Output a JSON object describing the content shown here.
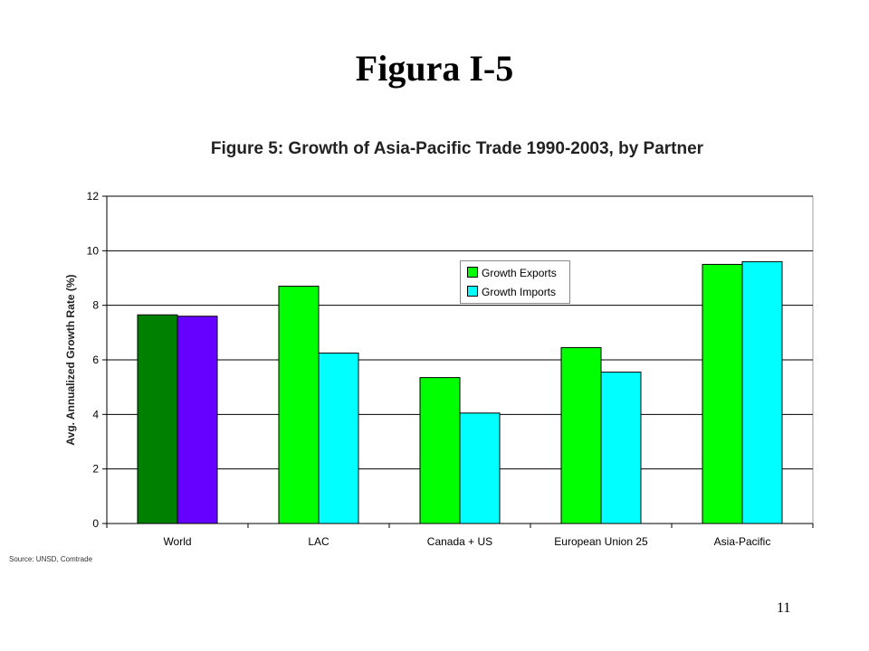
{
  "slide": {
    "title": "Figura I-5",
    "page_number": "11"
  },
  "source_note": "Source:  UNSD, Comtrade",
  "chart_data": {
    "type": "bar",
    "title": "Figure 5: Growth of Asia-Pacific Trade 1990-2003, by Partner",
    "xlabel": "",
    "ylabel": "Avg. Annualized Growth Rate (%)",
    "ylim": [
      0,
      12
    ],
    "yticks": [
      0,
      2,
      4,
      6,
      8,
      10,
      12
    ],
    "grid": true,
    "legend_position": "upper-center",
    "categories": [
      "World",
      "LAC",
      "Canada + US",
      "European Union 25",
      "Asia-Pacific"
    ],
    "series": [
      {
        "name": "Growth Exports",
        "color": "#00ff00",
        "values": [
          7.65,
          8.7,
          5.35,
          6.45,
          9.5
        ],
        "point_colors": [
          "#008000",
          "#00ff00",
          "#00ff00",
          "#00ff00",
          "#00ff00"
        ]
      },
      {
        "name": "Growth Imports",
        "color": "#00ffff",
        "values": [
          7.6,
          6.25,
          4.05,
          5.55,
          9.6
        ],
        "point_colors": [
          "#6600ff",
          "#00ffff",
          "#00ffff",
          "#00ffff",
          "#00ffff"
        ]
      }
    ]
  }
}
